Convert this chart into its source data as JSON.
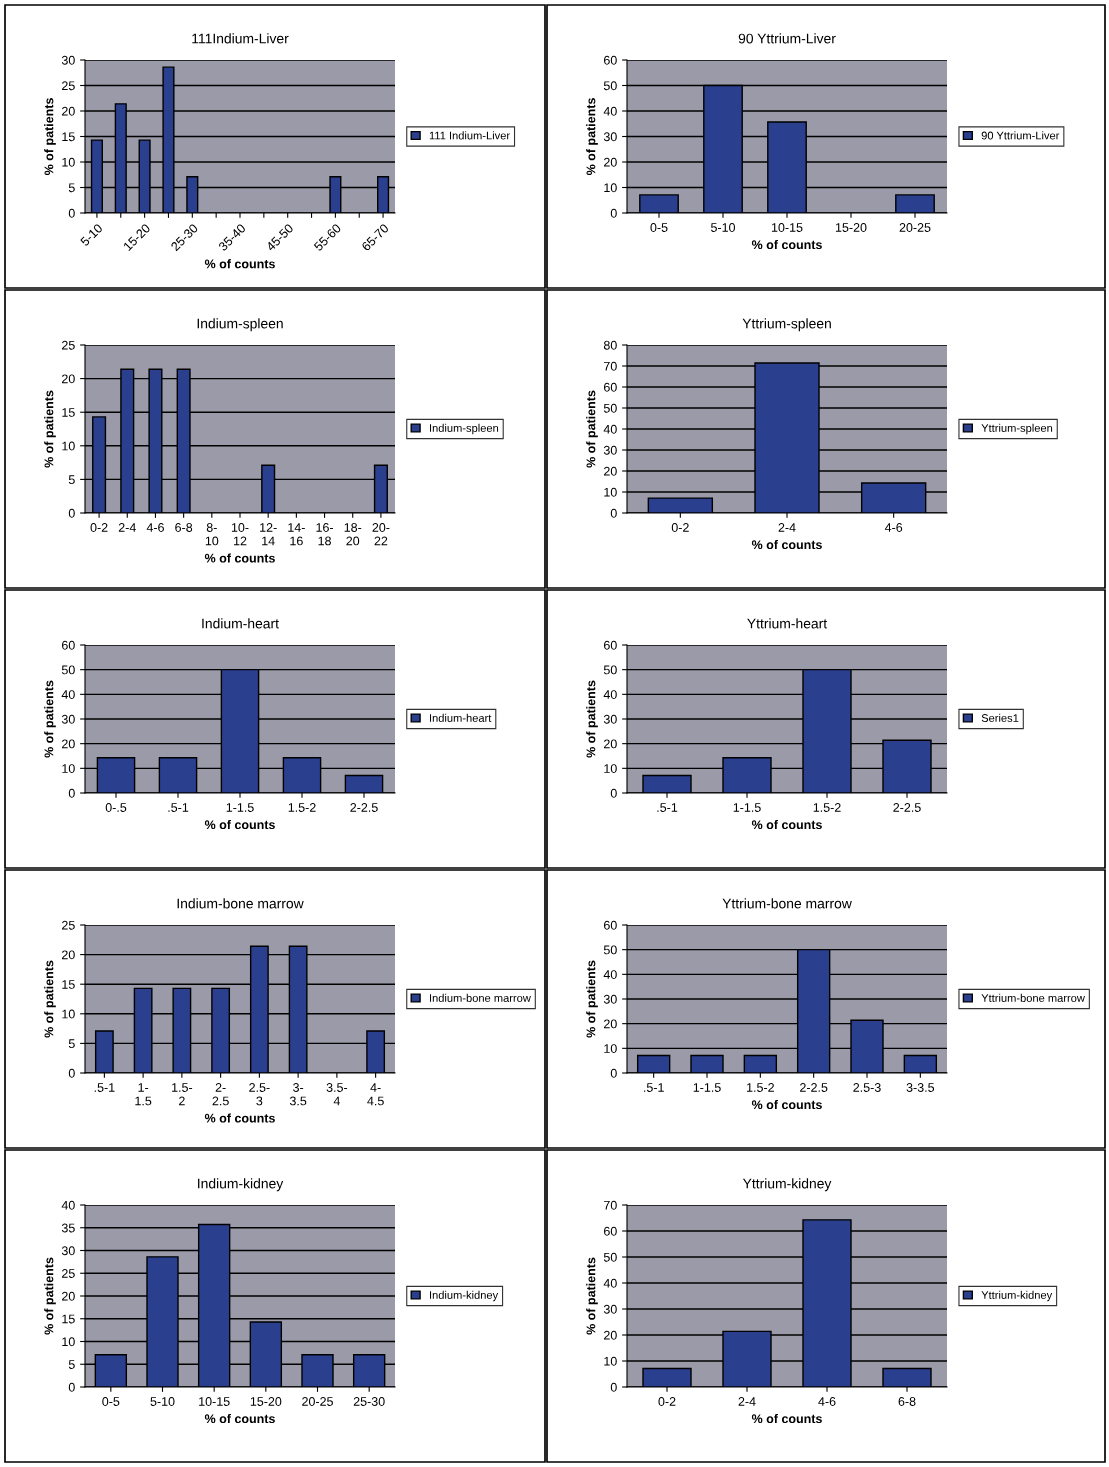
{
  "chart_data": [
    {
      "type": "bar",
      "title": "111Indium-Liver",
      "xlabel": "% of counts",
      "ylabel": "% of patients",
      "categories": [
        "5-10",
        null,
        "15-20",
        null,
        "25-30",
        null,
        "35-40",
        null,
        "45-50",
        null,
        "55-60",
        null,
        "65-70"
      ],
      "series": [
        {
          "name": "111 Indium-Liver",
          "color": "#2b3f8f",
          "values": [
            14.3,
            21.4,
            14.3,
            28.6,
            7.1,
            0,
            0,
            0,
            0,
            0,
            7.1,
            0,
            7.1
          ]
        }
      ],
      "ylim": [
        0,
        30
      ],
      "yticks": [
        0,
        5,
        10,
        15,
        20,
        25,
        30
      ],
      "grid": "y",
      "legend": "right"
    },
    {
      "type": "bar",
      "title": "90 Yttrium-Liver",
      "xlabel": "% of counts",
      "ylabel": "% of patients",
      "categories": [
        "0-5",
        "5-10",
        "10-15",
        "15-20",
        "20-25"
      ],
      "series": [
        {
          "name": "90 Yttrium-Liver",
          "color": "#2b3f8f",
          "values": [
            7.1,
            50,
            35.7,
            0,
            7.1
          ]
        }
      ],
      "ylim": [
        0,
        60
      ],
      "yticks": [
        0,
        10,
        20,
        30,
        40,
        50,
        60
      ],
      "grid": "y",
      "legend": "right"
    },
    {
      "type": "bar",
      "title": "Indium-spleen",
      "xlabel": "% of counts",
      "ylabel": "% of patients",
      "categories": [
        "0-2",
        "2-4",
        "4-6",
        "6-8",
        "8-\n10",
        "10-\n12",
        "12-\n14",
        "14-\n16",
        "16-\n18",
        "18-\n20",
        "20-\n22"
      ],
      "series": [
        {
          "name": "Indium-spleen",
          "color": "#2b3f8f",
          "values": [
            14.3,
            21.4,
            21.4,
            21.4,
            0,
            0,
            7.1,
            0,
            0,
            0,
            7.1
          ]
        }
      ],
      "ylim": [
        0,
        25
      ],
      "yticks": [
        0,
        5,
        10,
        15,
        20,
        25
      ],
      "grid": "y",
      "legend": "right"
    },
    {
      "type": "bar",
      "title": "Yttrium-spleen",
      "xlabel": "% of counts",
      "ylabel": "% of patients",
      "categories": [
        "0-2",
        "2-4",
        "4-6"
      ],
      "series": [
        {
          "name": "Yttrium-spleen",
          "color": "#2b3f8f",
          "values": [
            7.1,
            71.4,
            14.3
          ]
        }
      ],
      "ylim": [
        0,
        80
      ],
      "yticks": [
        0,
        10,
        20,
        30,
        40,
        50,
        60,
        70,
        80
      ],
      "grid": "y",
      "legend": "right"
    },
    {
      "type": "bar",
      "title": "Indium-heart",
      "xlabel": "% of counts",
      "ylabel": "% of patients",
      "categories": [
        "0-.5",
        ".5-1",
        "1-1.5",
        "1.5-2",
        "2-2.5"
      ],
      "series": [
        {
          "name": "Indium-heart",
          "color": "#2b3f8f",
          "values": [
            14.3,
            14.3,
            50,
            14.3,
            7.1
          ]
        }
      ],
      "ylim": [
        0,
        60
      ],
      "yticks": [
        0,
        10,
        20,
        30,
        40,
        50,
        60
      ],
      "grid": "y",
      "legend": "right"
    },
    {
      "type": "bar",
      "title": "Yttrium-heart",
      "xlabel": "% of counts",
      "ylabel": "% of patients",
      "categories": [
        ".5-1",
        "1-1.5",
        "1.5-2",
        "2-2.5"
      ],
      "series": [
        {
          "name": "Series1",
          "color": "#2b3f8f",
          "values": [
            7.1,
            14.3,
            50,
            21.4
          ]
        }
      ],
      "ylim": [
        0,
        60
      ],
      "yticks": [
        0,
        10,
        20,
        30,
        40,
        50,
        60
      ],
      "grid": "y",
      "legend": "right"
    },
    {
      "type": "bar",
      "title": "Indium-bone marrow",
      "xlabel": "% of counts",
      "ylabel": "% of patients",
      "categories": [
        ".5-1",
        "1-\n1.5",
        "1.5-\n2",
        "2-\n2.5",
        "2.5-\n3",
        "3-\n3.5",
        "3.5-\n4",
        "4-\n4.5"
      ],
      "series": [
        {
          "name": "Indium-bone marrow",
          "color": "#2b3f8f",
          "values": [
            7.1,
            14.3,
            14.3,
            14.3,
            21.4,
            21.4,
            0,
            7.1
          ]
        }
      ],
      "ylim": [
        0,
        25
      ],
      "yticks": [
        0,
        5,
        10,
        15,
        20,
        25
      ],
      "grid": "y",
      "legend": "right"
    },
    {
      "type": "bar",
      "title": "Yttrium-bone marrow",
      "xlabel": "% of counts",
      "ylabel": "% of patients",
      "categories": [
        ".5-1",
        "1-1.5",
        "1.5-2",
        "2-2.5",
        "2.5-3",
        "3-3.5"
      ],
      "series": [
        {
          "name": "Yttrium-bone marrow",
          "color": "#2b3f8f",
          "values": [
            7.1,
            7.1,
            7.1,
            50,
            21.4,
            7.1
          ]
        }
      ],
      "ylim": [
        0,
        60
      ],
      "yticks": [
        0,
        10,
        20,
        30,
        40,
        50,
        60
      ],
      "grid": "y",
      "legend": "right"
    },
    {
      "type": "bar",
      "title": "Indium-kidney",
      "xlabel": "% of counts",
      "ylabel": "% of patients",
      "categories": [
        "0-5",
        "5-10",
        "10-15",
        "15-20",
        "20-25",
        "25-30"
      ],
      "series": [
        {
          "name": "Indium-kidney",
          "color": "#2b3f8f",
          "values": [
            7.1,
            28.6,
            35.7,
            14.3,
            7.1,
            7.1
          ]
        }
      ],
      "ylim": [
        0,
        40
      ],
      "yticks": [
        0,
        5,
        10,
        15,
        20,
        25,
        30,
        35,
        40
      ],
      "grid": "y",
      "legend": "right"
    },
    {
      "type": "bar",
      "title": "Yttrium-kidney",
      "xlabel": "% of counts",
      "ylabel": "% of patients",
      "categories": [
        "0-2",
        "2-4",
        "4-6",
        "6-8"
      ],
      "series": [
        {
          "name": "Yttrium-kidney",
          "color": "#2b3f8f",
          "values": [
            7.1,
            21.4,
            64.3,
            7.1
          ]
        }
      ],
      "ylim": [
        0,
        70
      ],
      "yticks": [
        0,
        10,
        20,
        30,
        40,
        50,
        60,
        70
      ],
      "grid": "y",
      "legend": "right"
    }
  ]
}
